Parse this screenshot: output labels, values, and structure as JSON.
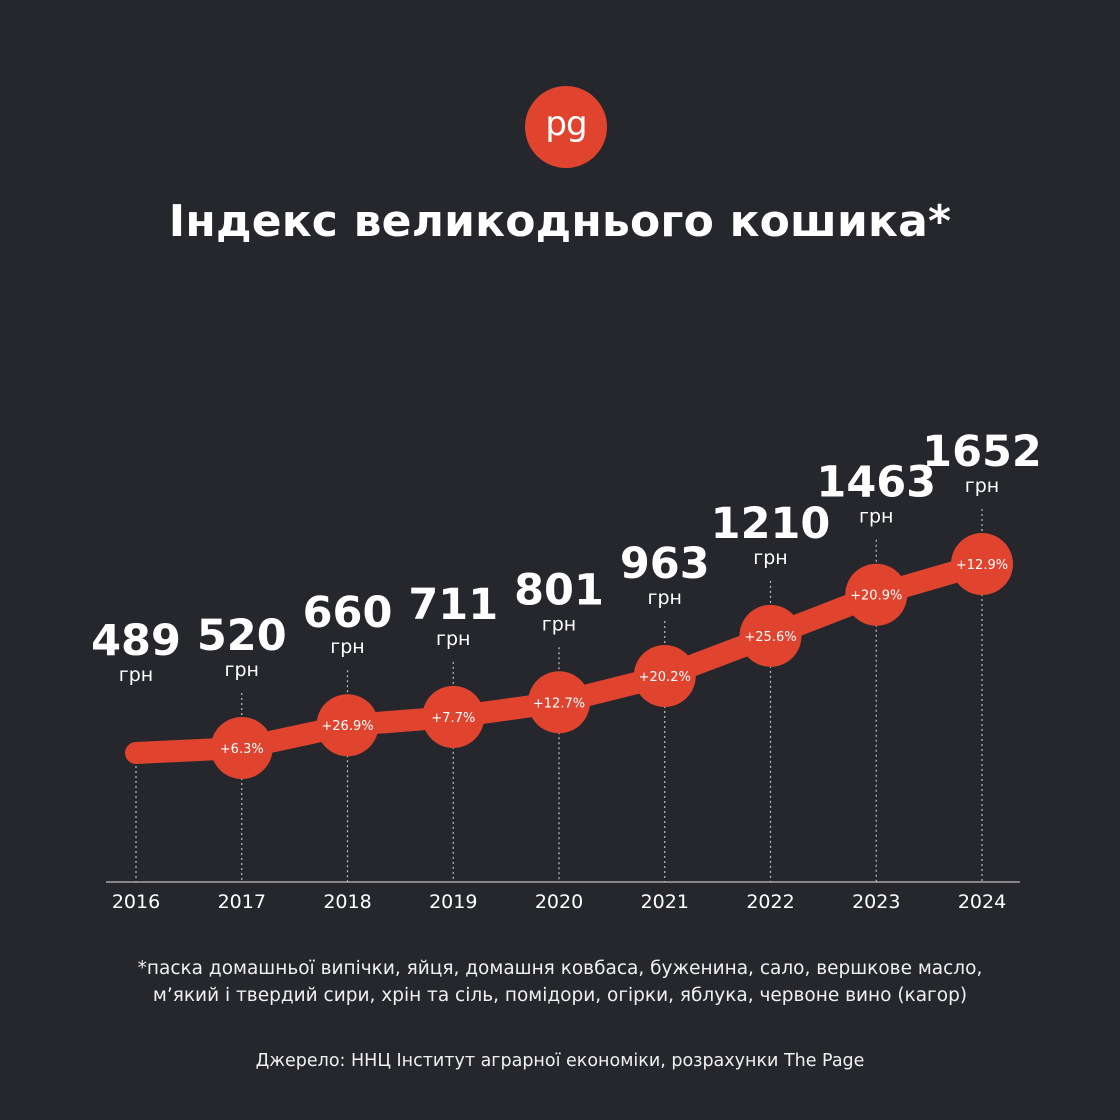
{
  "logo": {
    "text": "pg"
  },
  "title": "Індекс великоднього кошика*",
  "chart_data": {
    "type": "line",
    "x": [
      "2016",
      "2017",
      "2018",
      "2019",
      "2020",
      "2021",
      "2022",
      "2023",
      "2024"
    ],
    "values": [
      489,
      520,
      660,
      711,
      801,
      963,
      1210,
      1463,
      1652
    ],
    "value_unit": "грн",
    "changes": [
      null,
      "+6.3%",
      "+26.9%",
      "+7.7%",
      "+12.7%",
      "+20.2%",
      "+25.6%",
      "+20.9%",
      "+12.9%"
    ],
    "colors": {
      "line": "#e0442f",
      "background": "#26272c",
      "text": "#ffffff",
      "guide": "#bfbfbf"
    }
  },
  "footnote": [
    "*паска домашньої випічки, яйця, домашня ковбаса, буженина, сало, вершкове масло,",
    "м’який і твердий сири, хрін та сіль, помідори, огірки, яблука, червоне вино (кагор)"
  ],
  "source": "Джерело: ННЦ Інститут аграрної економіки, розрахунки The Page"
}
